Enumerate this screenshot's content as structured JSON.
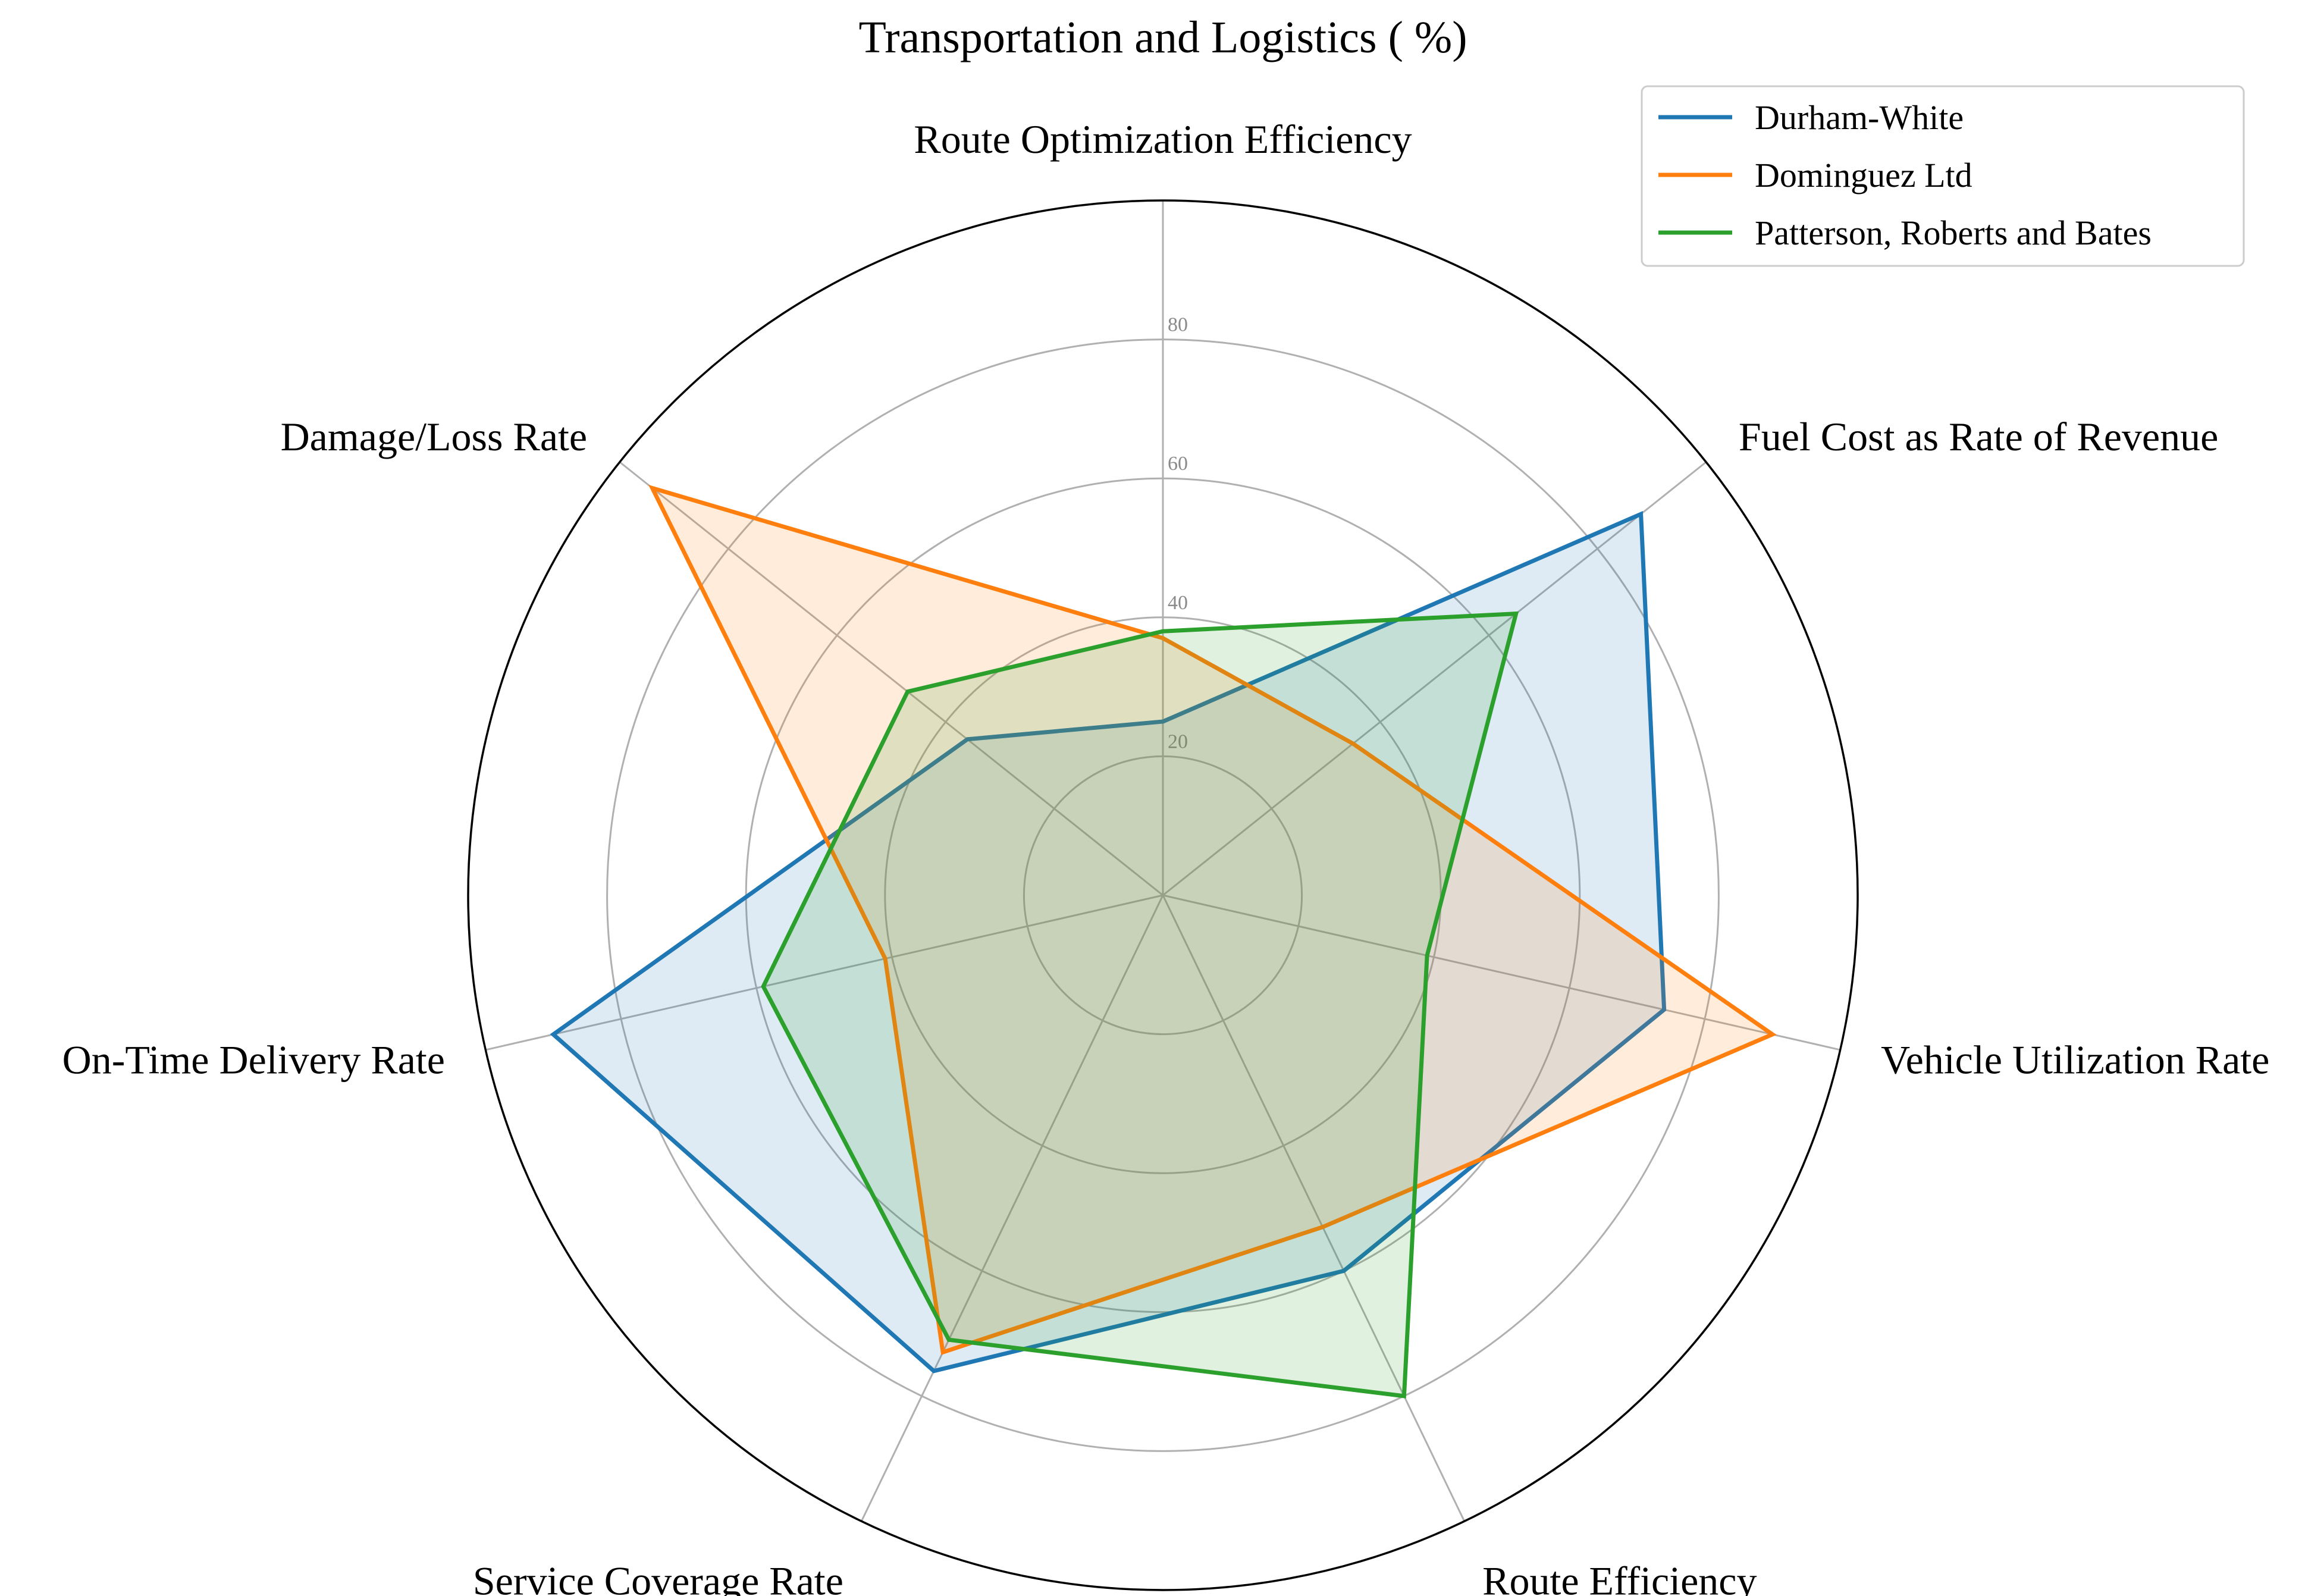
{
  "chart_data": {
    "type": "radar",
    "title": "Transportation and Logistics ( %)",
    "axes": [
      "Route Optimization Efficiency",
      "Fuel Cost as Rate of Revenue",
      "Vehicle Utilization Rate",
      "Route Efficiency",
      "Service Coverage Rate",
      "On-Time Delivery Rate",
      "Damage/Loss Rate"
    ],
    "rlim": [
      0,
      100
    ],
    "rticks": [
      20,
      40,
      60,
      80
    ],
    "rtick_labels": [
      "20",
      "40",
      "60",
      "80"
    ],
    "grid": true,
    "legend_position": "top-right",
    "series": [
      {
        "name": "Durham-White",
        "color": "#1f77b4",
        "values": [
          25,
          88,
          74,
          60,
          76,
          90,
          36
        ]
      },
      {
        "name": "Dominguez Ltd",
        "color": "#ff7f0e",
        "values": [
          37,
          35,
          90,
          53,
          73,
          41,
          94
        ]
      },
      {
        "name": "Patterson, Roberts and Bates",
        "color": "#2ca02c",
        "values": [
          38,
          65,
          39,
          80,
          71,
          59,
          47
        ]
      }
    ]
  }
}
